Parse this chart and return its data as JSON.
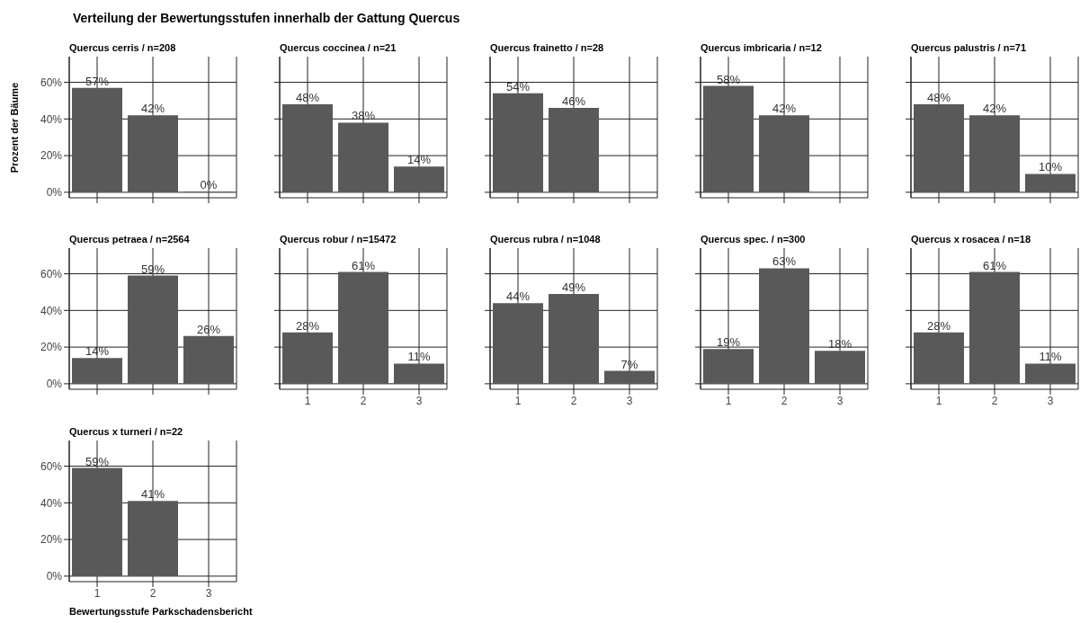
{
  "chart_data": [
    {
      "type": "bar",
      "title": "Quercus cerris / n=208",
      "annotations": [
        "Verteilung der Bewertungsstufen innerhalb der Gattung Quercus"
      ],
      "ylabel": "Prozent der Bäume",
      "categories": [
        "1",
        "2",
        "3"
      ],
      "values": [
        57,
        42,
        0
      ],
      "value_labels": [
        "57%",
        "42%",
        "0%"
      ],
      "color": "#595959",
      "ylim": [
        -3,
        74
      ],
      "yticks": [
        {
          "value": 0,
          "label": "0%"
        },
        {
          "value": 20,
          "label": "20%"
        },
        {
          "value": 40,
          "label": "40%"
        },
        {
          "value": 60,
          "label": "60%"
        }
      ],
      "grid": true,
      "tick_labels": "y"
    },
    {
      "type": "bar",
      "title": "Quercus coccinea / n=21",
      "categories": [
        "1",
        "2",
        "3"
      ],
      "values": [
        48,
        38,
        14
      ],
      "value_labels": [
        "48%",
        "38%",
        "14%"
      ],
      "color": "#595959",
      "ylim": [
        -3,
        74
      ],
      "yticks": [
        {
          "value": 0,
          "label": null
        },
        {
          "value": 20,
          "label": null
        },
        {
          "value": 40,
          "label": null
        },
        {
          "value": 60,
          "label": null
        }
      ],
      "grid": true,
      "tick_labels": false
    },
    {
      "type": "bar",
      "title": "Quercus frainetto / n=28",
      "categories": [
        "1",
        "2",
        "3"
      ],
      "values": [
        54,
        46,
        null
      ],
      "value_labels": [
        "54%",
        "46%",
        null
      ],
      "color": "#595959",
      "ylim": [
        -3,
        74
      ],
      "yticks": [
        {
          "value": 0,
          "label": null
        },
        {
          "value": 20,
          "label": null
        },
        {
          "value": 40,
          "label": null
        },
        {
          "value": 60,
          "label": null
        }
      ],
      "grid": true,
      "tick_labels": false
    },
    {
      "type": "bar",
      "title": "Quercus imbricaria / n=12",
      "categories": [
        "1",
        "2",
        "3"
      ],
      "values": [
        58,
        42,
        null
      ],
      "value_labels": [
        "58%",
        "42%",
        null
      ],
      "color": "#595959",
      "ylim": [
        -3,
        74
      ],
      "yticks": [
        {
          "value": 0,
          "label": null
        },
        {
          "value": 20,
          "label": null
        },
        {
          "value": 40,
          "label": null
        },
        {
          "value": 60,
          "label": null
        }
      ],
      "grid": true,
      "tick_labels": false
    },
    {
      "type": "bar",
      "title": "Quercus palustris / n=71",
      "categories": [
        "1",
        "2",
        "3"
      ],
      "values": [
        48,
        42,
        10
      ],
      "value_labels": [
        "48%",
        "42%",
        "10%"
      ],
      "color": "#595959",
      "ylim": [
        -3,
        74
      ],
      "yticks": [
        {
          "value": 0,
          "label": null
        },
        {
          "value": 20,
          "label": null
        },
        {
          "value": 40,
          "label": null
        },
        {
          "value": 60,
          "label": null
        }
      ],
      "grid": true,
      "tick_labels": false
    },
    {
      "type": "bar",
      "title": "Quercus petraea / n=2564",
      "categories": [
        "1",
        "2",
        "3"
      ],
      "values": [
        14,
        59,
        26
      ],
      "value_labels": [
        "14%",
        "59%",
        "26%"
      ],
      "color": "#595959",
      "ylim": [
        -3,
        74
      ],
      "yticks": [
        {
          "value": 0,
          "label": "0%"
        },
        {
          "value": 20,
          "label": "20%"
        },
        {
          "value": 40,
          "label": "40%"
        },
        {
          "value": 60,
          "label": "60%"
        }
      ],
      "grid": true,
      "tick_labels": "y"
    },
    {
      "type": "bar",
      "title": "Quercus robur / n=15472",
      "categories": [
        "1",
        "2",
        "3"
      ],
      "values": [
        28,
        61,
        11
      ],
      "value_labels": [
        "28%",
        "61%",
        "11%"
      ],
      "color": "#595959",
      "ylim": [
        -3,
        74
      ],
      "yticks": [
        {
          "value": 0,
          "label": null
        },
        {
          "value": 20,
          "label": null
        },
        {
          "value": 40,
          "label": null
        },
        {
          "value": 60,
          "label": null
        }
      ],
      "grid": true,
      "tick_labels": "x"
    },
    {
      "type": "bar",
      "title": "Quercus rubra / n=1048",
      "categories": [
        "1",
        "2",
        "3"
      ],
      "values": [
        44,
        49,
        7
      ],
      "value_labels": [
        "44%",
        "49%",
        "7%"
      ],
      "color": "#595959",
      "ylim": [
        -3,
        74
      ],
      "yticks": [
        {
          "value": 0,
          "label": null
        },
        {
          "value": 20,
          "label": null
        },
        {
          "value": 40,
          "label": null
        },
        {
          "value": 60,
          "label": null
        }
      ],
      "grid": true,
      "tick_labels": "x"
    },
    {
      "type": "bar",
      "title": "Quercus spec. / n=300",
      "categories": [
        "1",
        "2",
        "3"
      ],
      "values": [
        19,
        63,
        18
      ],
      "value_labels": [
        "19%",
        "63%",
        "18%"
      ],
      "color": "#595959",
      "ylim": [
        -3,
        74
      ],
      "yticks": [
        {
          "value": 0,
          "label": null
        },
        {
          "value": 20,
          "label": null
        },
        {
          "value": 40,
          "label": null
        },
        {
          "value": 60,
          "label": null
        }
      ],
      "grid": true,
      "tick_labels": "x"
    },
    {
      "type": "bar",
      "title": "Quercus x rosacea / n=18",
      "categories": [
        "1",
        "2",
        "3"
      ],
      "values": [
        28,
        61,
        11
      ],
      "value_labels": [
        "28%",
        "61%",
        "11%"
      ],
      "color": "#595959",
      "ylim": [
        -3,
        74
      ],
      "yticks": [
        {
          "value": 0,
          "label": null
        },
        {
          "value": 20,
          "label": null
        },
        {
          "value": 40,
          "label": null
        },
        {
          "value": 60,
          "label": null
        }
      ],
      "grid": true,
      "tick_labels": "x"
    },
    {
      "type": "bar",
      "title": "Quercus x turneri / n=22",
      "xlabel": "Bewertungsstufe Parkschadensbericht",
      "categories": [
        "1",
        "2",
        "3"
      ],
      "values": [
        59,
        41,
        null
      ],
      "value_labels": [
        "59%",
        "41%",
        null
      ],
      "color": "#595959",
      "ylim": [
        -3,
        74
      ],
      "yticks": [
        {
          "value": 0,
          "label": "0%"
        },
        {
          "value": 20,
          "label": "20%"
        },
        {
          "value": 40,
          "label": "40%"
        },
        {
          "value": 60,
          "label": "60%"
        }
      ],
      "grid": true
    }
  ]
}
